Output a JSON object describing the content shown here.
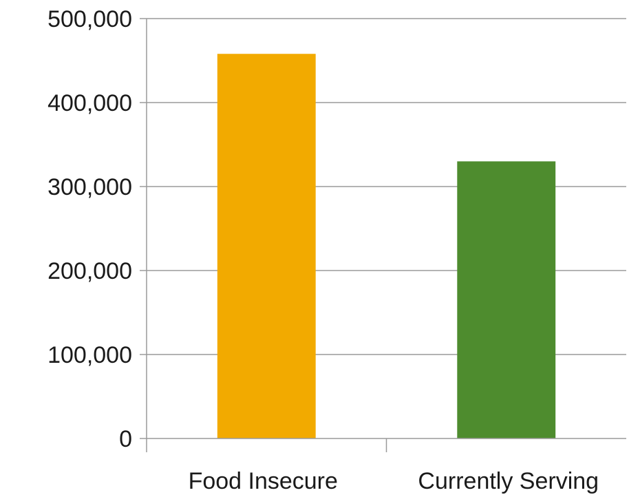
{
  "chart_data": {
    "type": "bar",
    "title": "",
    "xlabel": "",
    "ylabel": "",
    "categories": [
      "Food Insecure",
      "Currently Serving"
    ],
    "values": [
      458000,
      330000
    ],
    "colors": [
      "#F2AA00",
      "#4E8C2E"
    ],
    "ylim": [
      0,
      500000
    ],
    "yticks": [
      0,
      100000,
      200000,
      300000,
      400000,
      500000
    ],
    "ytick_labels": [
      "0",
      "100,000",
      "200,000",
      "300,000",
      "400,000",
      "500,000"
    ],
    "grid": true,
    "legend": "none"
  }
}
